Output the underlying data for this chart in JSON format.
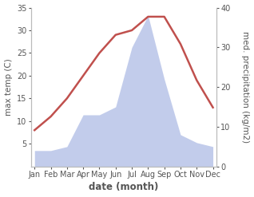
{
  "months": [
    "Jan",
    "Feb",
    "Mar",
    "Apr",
    "May",
    "Jun",
    "Jul",
    "Aug",
    "Sep",
    "Oct",
    "Nov",
    "Dec"
  ],
  "month_indices": [
    0,
    1,
    2,
    3,
    4,
    5,
    6,
    7,
    8,
    9,
    10,
    11
  ],
  "temp": [
    8,
    11,
    15,
    20,
    25,
    29,
    30,
    33,
    33,
    27,
    19,
    13
  ],
  "precip": [
    4,
    4,
    5,
    13,
    13,
    15,
    30,
    38,
    22,
    8,
    6,
    5
  ],
  "temp_color": "#c0504d",
  "precip_fill_color": "#b8c4e8",
  "temp_ylim": [
    0,
    35
  ],
  "precip_ylim": [
    0,
    40
  ],
  "temp_yticks": [
    5,
    10,
    15,
    20,
    25,
    30,
    35
  ],
  "precip_yticks": [
    0,
    10,
    20,
    30,
    40
  ],
  "xlabel": "date (month)",
  "ylabel_left": "max temp (C)",
  "ylabel_right": "med. precipitation (kg/m2)",
  "background_color": "#ffffff",
  "spine_color": "#bbbbbb",
  "tick_color": "#555555",
  "label_fontsize": 7.5,
  "tick_fontsize": 7,
  "linewidth": 1.8
}
